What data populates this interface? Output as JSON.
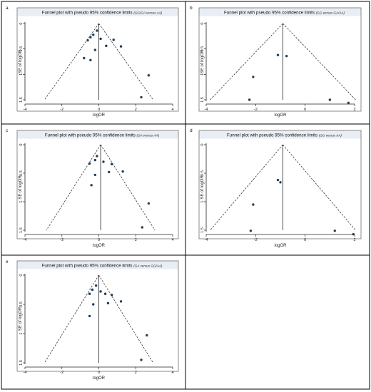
{
  "chart_data": [
    {
      "type": "scatter",
      "panel": "a",
      "title": "Funnel plot with pseudo 95% confidence limits",
      "subtitle": "(GG/GA versus AA)",
      "xlabel": "logOR",
      "ylabel": "SE of logOR",
      "xlim": [
        -4,
        4
      ],
      "ylim": [
        0,
        1.5
      ],
      "y_reversed": true,
      "xticks": [
        -4,
        -2,
        0,
        2,
        4
      ],
      "yticks": [
        0,
        0.5,
        1,
        1.5
      ],
      "pooled": 0.0,
      "points": [
        {
          "x": -0.6,
          "y": 0.33
        },
        {
          "x": -0.45,
          "y": 0.27
        },
        {
          "x": -0.3,
          "y": 0.22
        },
        {
          "x": -0.1,
          "y": 0.14
        },
        {
          "x": 0.1,
          "y": 0.3
        },
        {
          "x": 0.4,
          "y": 0.44
        },
        {
          "x": 0.8,
          "y": 0.32
        },
        {
          "x": 1.2,
          "y": 0.45
        },
        {
          "x": -0.2,
          "y": 0.52
        },
        {
          "x": -0.8,
          "y": 0.68
        },
        {
          "x": -0.45,
          "y": 0.72
        },
        {
          "x": 2.7,
          "y": 1.02
        },
        {
          "x": 2.3,
          "y": 1.45
        }
      ]
    },
    {
      "type": "scatter",
      "panel": "b",
      "title": "Funnel plot with pseudo 95% confidence limits",
      "subtitle": "(GG versus GA/AA)",
      "xlabel": "logOR",
      "ylabel": "SE of logOR",
      "xlim": [
        -4,
        2
      ],
      "ylim": [
        0,
        1.5
      ],
      "y_reversed": true,
      "xticks": [
        -4,
        -2,
        0,
        2
      ],
      "yticks": [
        0,
        0.5,
        1,
        1.5
      ],
      "pooled": -0.9,
      "points": [
        {
          "x": -1.1,
          "y": 0.62
        },
        {
          "x": -0.75,
          "y": 0.64
        },
        {
          "x": -2.1,
          "y": 1.05
        },
        {
          "x": -2.25,
          "y": 1.5
        },
        {
          "x": 1.0,
          "y": 1.5
        },
        {
          "x": 1.75,
          "y": 1.56
        }
      ]
    },
    {
      "type": "scatter",
      "panel": "c",
      "title": "Funnel plot with pseudo 95% confidence limits",
      "subtitle": "(GA versus AA)",
      "xlabel": "logOR",
      "ylabel": "SE of logOR",
      "xlim": [
        -4,
        4
      ],
      "ylim": [
        0,
        1.5
      ],
      "y_reversed": true,
      "xticks": [
        -4,
        -2,
        0,
        2,
        4
      ],
      "yticks": [
        0,
        0.5,
        1,
        1.5
      ],
      "pooled": 0.1,
      "points": [
        {
          "x": -0.5,
          "y": 0.33
        },
        {
          "x": -0.2,
          "y": 0.27
        },
        {
          "x": -0.1,
          "y": 0.2
        },
        {
          "x": 0.25,
          "y": 0.3
        },
        {
          "x": 0.7,
          "y": 0.34
        },
        {
          "x": 1.3,
          "y": 0.47
        },
        {
          "x": 0.55,
          "y": 0.48
        },
        {
          "x": -0.2,
          "y": 0.53
        },
        {
          "x": -0.4,
          "y": 0.71
        },
        {
          "x": 2.7,
          "y": 1.03
        },
        {
          "x": 2.35,
          "y": 1.45
        }
      ]
    },
    {
      "type": "scatter",
      "panel": "d",
      "title": "Funnel plot with pseudo 95% confidence limits",
      "subtitle": "(GG versus AA)",
      "xlabel": "logOR",
      "ylabel": "SE of logOR",
      "xlim": [
        -4,
        2
      ],
      "ylim": [
        0,
        1.5
      ],
      "y_reversed": true,
      "xticks": [
        -4,
        -2,
        0,
        2
      ],
      "yticks": [
        0,
        0.5,
        1,
        1.5
      ],
      "pooled": -0.9,
      "points": [
        {
          "x": -1.1,
          "y": 0.62
        },
        {
          "x": -1.0,
          "y": 0.66
        },
        {
          "x": -2.1,
          "y": 1.05
        },
        {
          "x": -2.2,
          "y": 1.51
        },
        {
          "x": 1.2,
          "y": 1.51
        },
        {
          "x": 1.95,
          "y": 1.57
        }
      ]
    },
    {
      "type": "scatter",
      "panel": "e",
      "title": "Funnel plot with pseudo 95% confidence limits",
      "subtitle": "(GA versus GG/AA)",
      "xlabel": "logOR",
      "ylabel": "SE of logOR",
      "xlim": [
        -4,
        4
      ],
      "ylim": [
        0,
        1.5
      ],
      "y_reversed": true,
      "xticks": [
        -4,
        -2,
        0,
        2,
        4
      ],
      "yticks": [
        0,
        0.5,
        1,
        1.5
      ],
      "pooled": 0.0,
      "points": [
        {
          "x": -0.5,
          "y": 0.32
        },
        {
          "x": -0.35,
          "y": 0.25
        },
        {
          "x": -0.15,
          "y": 0.18
        },
        {
          "x": 0.1,
          "y": 0.28
        },
        {
          "x": 0.35,
          "y": 0.32
        },
        {
          "x": 0.7,
          "y": 0.34
        },
        {
          "x": 1.2,
          "y": 0.45
        },
        {
          "x": 0.5,
          "y": 0.48
        },
        {
          "x": -0.3,
          "y": 0.5
        },
        {
          "x": -0.5,
          "y": 0.7
        },
        {
          "x": 2.6,
          "y": 1.03
        },
        {
          "x": 2.3,
          "y": 1.45
        }
      ]
    }
  ]
}
